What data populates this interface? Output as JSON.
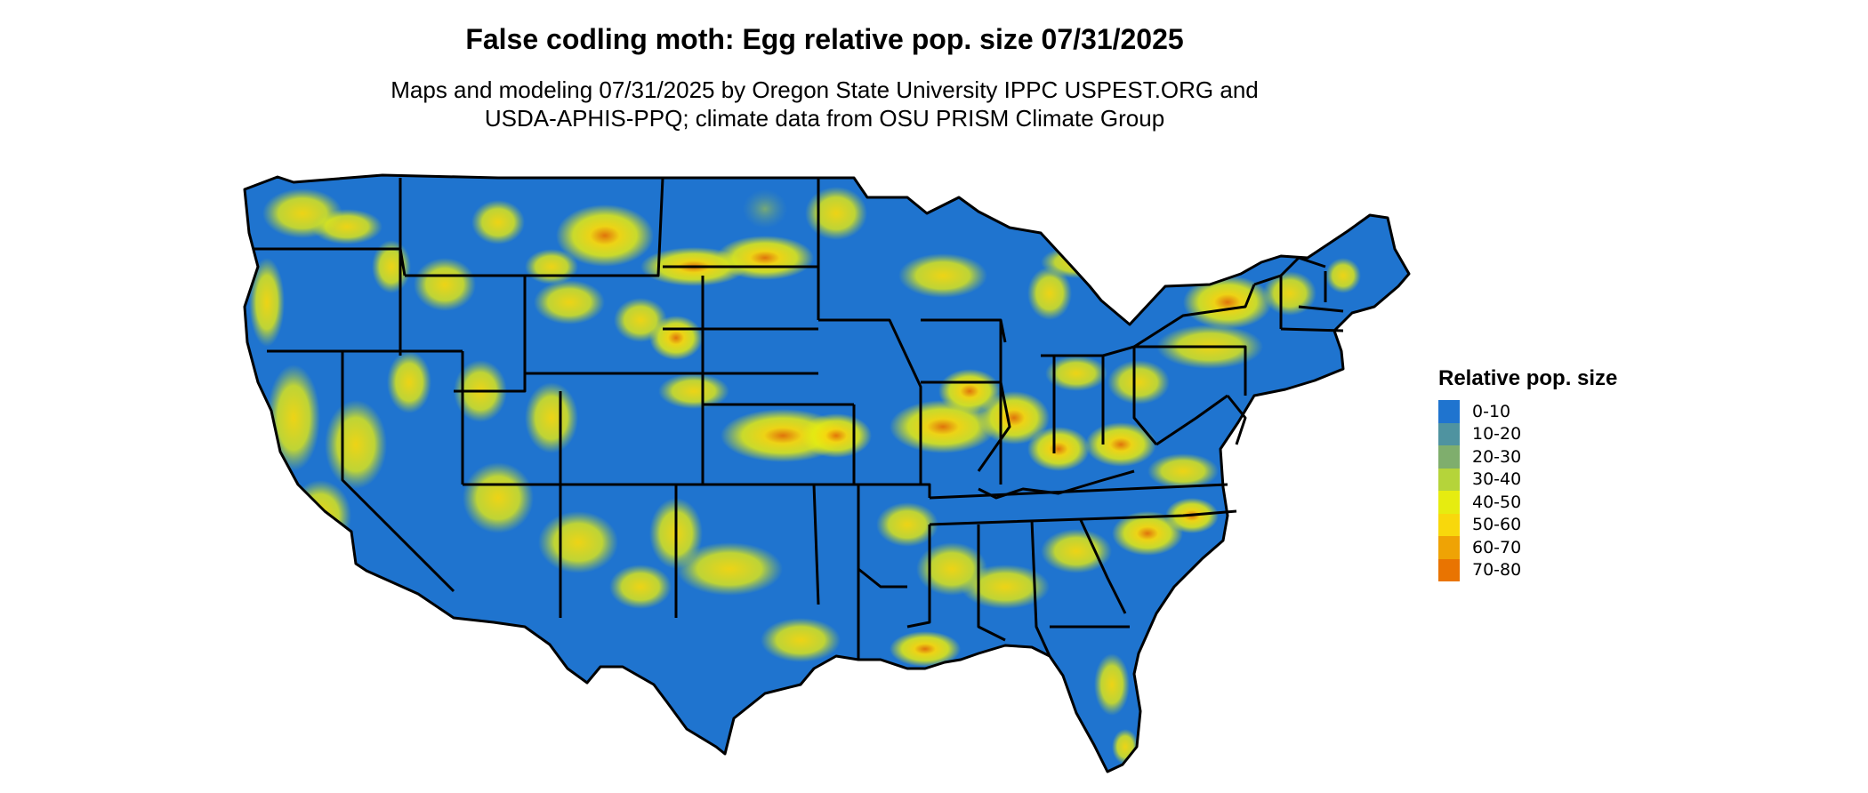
{
  "title": "False codling moth: Egg relative pop. size 07/31/2025",
  "subtitle": {
    "line1": "Maps and modeling 07/31/2025 by Oregon State University IPPC USPEST.ORG and",
    "line2": "USDA-APHIS-PPQ; climate data from OSU PRISM Climate Group"
  },
  "map": {
    "region": "conterminous United States",
    "base_color": "#1f74cf",
    "border_color": "#000000",
    "highlight_colors": [
      "#4f93a0",
      "#7fae6d",
      "#b5d43a",
      "#e6ec10",
      "#f8d80c",
      "#efa305",
      "#e97401"
    ]
  },
  "legend": {
    "title": "Relative pop. size",
    "items": [
      {
        "label": "0-10",
        "color": "#1f74cf"
      },
      {
        "label": "10-20",
        "color": "#4f93a0"
      },
      {
        "label": "20-30",
        "color": "#7fae6d"
      },
      {
        "label": "30-40",
        "color": "#b5d43a"
      },
      {
        "label": "40-50",
        "color": "#e6ec10"
      },
      {
        "label": "50-60",
        "color": "#f8d80c"
      },
      {
        "label": "60-70",
        "color": "#efa305"
      },
      {
        "label": "70-80",
        "color": "#e97401"
      }
    ]
  }
}
